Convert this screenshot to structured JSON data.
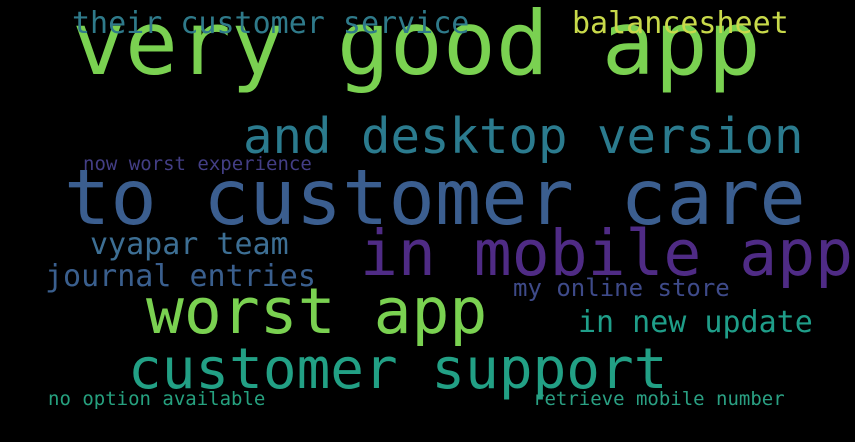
{
  "background_color": "#000000",
  "words": [
    {
      "id": "very-good-app",
      "text": "very good app",
      "color": "#7ad151"
    },
    {
      "id": "to-customer-care",
      "text": "to customer care",
      "color": "#3b5e8f"
    },
    {
      "id": "in-mobile-app",
      "text": "in mobile app",
      "color": "#4f2b85"
    },
    {
      "id": "worst-app",
      "text": "worst app",
      "color": "#7ad151"
    },
    {
      "id": "customer-support",
      "text": "customer support",
      "color": "#22a085"
    },
    {
      "id": "and-desktop-version",
      "text": "and desktop version",
      "color": "#2b7b8e"
    },
    {
      "id": "their-customer-service",
      "text": "their customer service",
      "color": "#2f7a8a"
    },
    {
      "id": "balancesheet",
      "text": "balancesheet",
      "color": "#c8d94a"
    },
    {
      "id": "vyapar-team",
      "text": "vyapar team",
      "color": "#3d6f94"
    },
    {
      "id": "journal-entries",
      "text": "journal entries",
      "color": "#3a5f8e"
    },
    {
      "id": "in-new-update",
      "text": "in new update",
      "color": "#1f9e89"
    },
    {
      "id": "my-online-store",
      "text": "my online store",
      "color": "#3e4a89"
    },
    {
      "id": "now-worst-experience",
      "text": "now worst experience",
      "color": "#433e85"
    },
    {
      "id": "no-option-available",
      "text": "no option available",
      "color": "#26a17f"
    },
    {
      "id": "retrieve-mobile-number",
      "text": "retrieve mobile number",
      "color": "#2aa083"
    }
  ]
}
